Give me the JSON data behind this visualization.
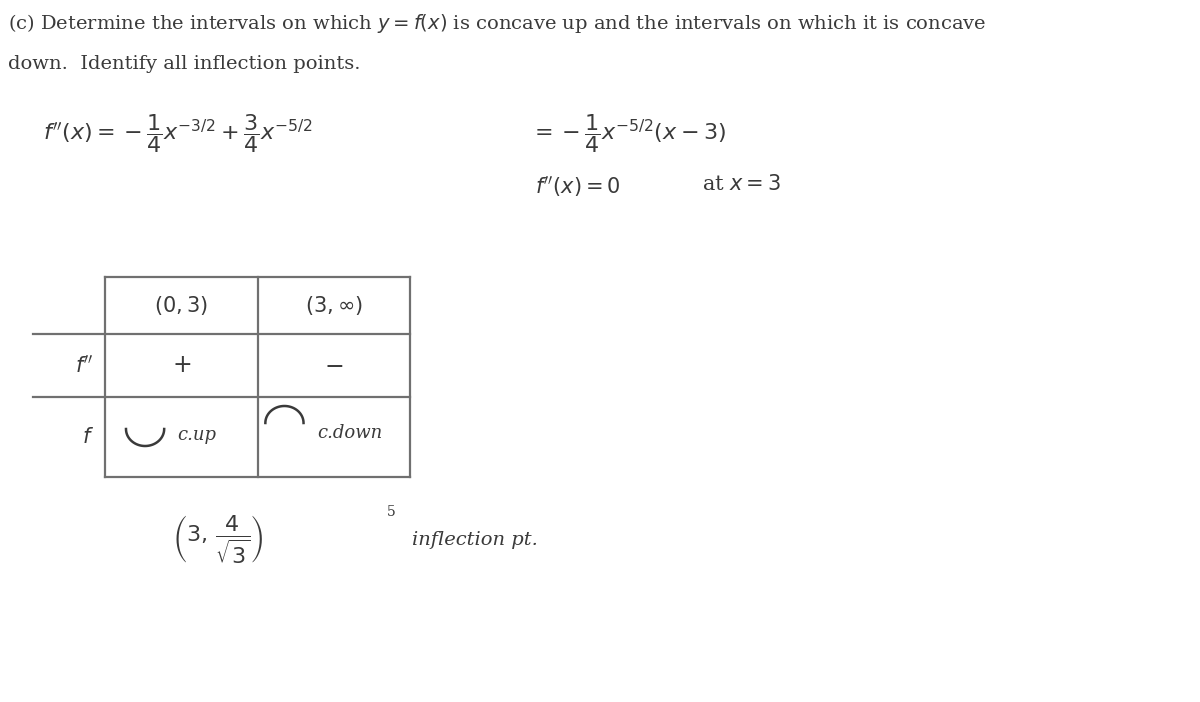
{
  "background_color": "#ffffff",
  "title_line1": "(c) Determine the intervals on which $y = f(x)$ is concave up and the intervals on which it is concave",
  "title_line2": "down.  Identify all inflection points.",
  "eq_main": "$f^{\\prime\\prime}(x) = -\\dfrac{1}{4}x^{-3/2} + \\dfrac{3}{4}x^{-5/2} = -\\dfrac{1}{4}x^{-5/2}(x-3)$",
  "eq_zero": "$f^{\\prime\\prime}(x)=0$",
  "eq_at_x3": "at $x = 3$",
  "col1_header": "$(0,3)$",
  "col2_header": "$(3, \\infty)$",
  "row1_label": "$f^{\\prime\\prime}$",
  "row1_col1": "$+$",
  "row1_col2": "$-$",
  "row2_label": "$f$",
  "row2_col1_text": "c.up",
  "row2_col2_text": "c.down",
  "inflection_expr": "$\\left(3,\\,\\dfrac{4}{\\sqrt{3}}\\right)$",
  "inflection_super": "5",
  "inflection_word": "inflection pt.",
  "title_fontsize": 14,
  "eq_fontsize": 16,
  "table_fontsize": 15,
  "label_fontsize": 15,
  "inflection_fontsize": 16,
  "text_color": "#3a3a3a",
  "line_color": "#707070",
  "fig_width": 12.0,
  "fig_height": 7.02
}
